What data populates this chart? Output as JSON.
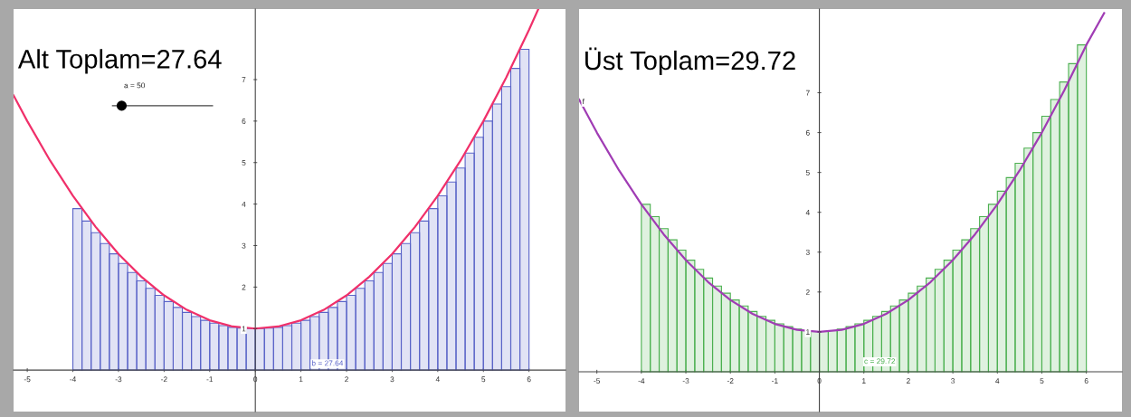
{
  "chart_data": [
    {
      "type": "histogram",
      "title": "Alt Toplam=27.64",
      "color": "#5a64c8",
      "bins": [
        -4,
        -3.8,
        -3.6,
        -3.4,
        -3.2,
        -3,
        -2.8,
        -2.6,
        -2.4,
        -2.2,
        -2,
        -1.8,
        -1.6,
        -1.4,
        -1.2,
        -1,
        -0.8,
        -0.6,
        -0.4,
        -0.2,
        0,
        0.2,
        0.4,
        0.6,
        0.8,
        1,
        1.2,
        1.4,
        1.6,
        1.8,
        2,
        2.2,
        2.4,
        2.6,
        2.8,
        3,
        3.2,
        3.4,
        3.6,
        3.8,
        4,
        4.2,
        4.4,
        4.6,
        4.8,
        5,
        5.2,
        5.4,
        5.6,
        5.8,
        6
      ],
      "values": [
        3.89,
        3.59,
        3.31,
        3.05,
        2.8,
        2.57,
        2.35,
        2.15,
        1.97,
        1.8,
        1.65,
        1.51,
        1.39,
        1.29,
        1.2,
        1.13,
        1.07,
        1.03,
        1.01,
        1,
        1,
        1.01,
        1.03,
        1.07,
        1.13,
        1.2,
        1.29,
        1.39,
        1.51,
        1.65,
        1.8,
        1.97,
        2.15,
        2.35,
        2.57,
        2.8,
        3.05,
        3.31,
        3.59,
        3.89,
        4.2,
        4.53,
        4.87,
        5.23,
        5.61,
        6,
        6.41,
        6.83,
        7.27,
        7.73
      ],
      "series": [
        {
          "type": "line",
          "color": "#f0306a",
          "x": [
            -5.3,
            -5,
            -4.5,
            -4,
            -3.5,
            -3,
            -2.5,
            -2,
            -1.5,
            -1,
            -0.5,
            0,
            0.5,
            1,
            1.5,
            2,
            2.5,
            3,
            3.5,
            4,
            4.5,
            5,
            5.5,
            6,
            6.2
          ],
          "values": [
            6.62,
            6,
            5.05,
            4.2,
            3.45,
            2.8,
            2.25,
            1.8,
            1.45,
            1.2,
            1.05,
            1,
            1.05,
            1.2,
            1.45,
            1.8,
            2.25,
            2.8,
            3.45,
            4.2,
            5.05,
            6,
            7.05,
            8.2,
            8.69
          ]
        }
      ],
      "xlim": [
        -5.3,
        6.8
      ],
      "ylim": [
        -1,
        8.7
      ],
      "xticks": [
        -5,
        -4,
        -3,
        -2,
        -1,
        0,
        1,
        2,
        3,
        4,
        5,
        6
      ],
      "yticks": [
        1,
        2,
        3,
        4,
        5,
        6,
        7
      ],
      "annotations": [
        "a = 50",
        "b = 27.64"
      ]
    },
    {
      "type": "histogram",
      "title": "Üst Toplam=29.72",
      "color": "#4cb050",
      "bins": [
        -4,
        -3.8,
        -3.6,
        -3.4,
        -3.2,
        -3,
        -2.8,
        -2.6,
        -2.4,
        -2.2,
        -2,
        -1.8,
        -1.6,
        -1.4,
        -1.2,
        -1,
        -0.8,
        -0.6,
        -0.4,
        -0.2,
        0,
        0.2,
        0.4,
        0.6,
        0.8,
        1,
        1.2,
        1.4,
        1.6,
        1.8,
        2,
        2.2,
        2.4,
        2.6,
        2.8,
        3,
        3.2,
        3.4,
        3.6,
        3.8,
        4,
        4.2,
        4.4,
        4.6,
        4.8,
        5,
        5.2,
        5.4,
        5.6,
        5.8,
        6
      ],
      "values": [
        4.2,
        3.89,
        3.59,
        3.31,
        3.05,
        2.8,
        2.57,
        2.35,
        2.15,
        1.97,
        1.8,
        1.65,
        1.51,
        1.39,
        1.29,
        1.2,
        1.13,
        1.07,
        1.03,
        1.01,
        1.01,
        1.03,
        1.07,
        1.13,
        1.2,
        1.29,
        1.39,
        1.51,
        1.65,
        1.8,
        1.97,
        2.15,
        2.35,
        2.57,
        2.8,
        3.05,
        3.31,
        3.59,
        3.89,
        4.2,
        4.53,
        4.87,
        5.23,
        5.61,
        6,
        6.41,
        6.83,
        7.27,
        7.73,
        8.2
      ],
      "series": [
        {
          "type": "line",
          "color": "#a03cb4",
          "x": [
            -5.4,
            -5,
            -4.5,
            -4,
            -3.5,
            -3,
            -2.5,
            -2,
            -1.5,
            -1,
            -0.5,
            0,
            0.5,
            1,
            1.5,
            2,
            2.5,
            3,
            3.5,
            4,
            4.5,
            5,
            5.5,
            6,
            6.4
          ],
          "values": [
            6.83,
            6,
            5.05,
            4.2,
            3.45,
            2.8,
            2.25,
            1.8,
            1.45,
            1.2,
            1.05,
            1,
            1.05,
            1.2,
            1.45,
            1.8,
            2.25,
            2.8,
            3.45,
            4.2,
            5.05,
            6,
            7.05,
            8.2,
            9.0
          ]
        }
      ],
      "xlim": [
        -5.4,
        6.8
      ],
      "ylim": [
        -1,
        9.1
      ],
      "xticks": [
        -5,
        -4,
        -3,
        -2,
        -1,
        0,
        1,
        2,
        3,
        4,
        5,
        6
      ],
      "yticks": [
        1,
        2,
        3,
        4,
        5,
        6,
        7
      ],
      "annotations": [
        "c = 29.72",
        "f"
      ]
    }
  ]
}
